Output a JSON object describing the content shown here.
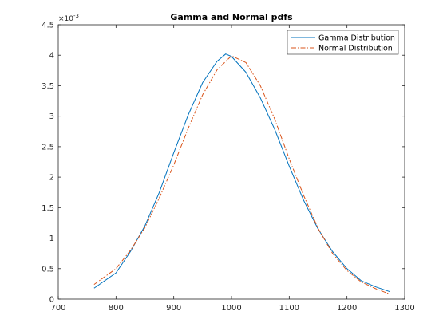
{
  "chart_data": {
    "type": "line",
    "title": "Gamma and Normal pdfs",
    "xlabel": "",
    "ylabel": "",
    "xlim": [
      700,
      1300
    ],
    "ylim": [
      0,
      4.5
    ],
    "y_exponent_label": "×10",
    "y_exponent_power": "-3",
    "x_ticks": [
      "700",
      "800",
      "900",
      "1000",
      "1100",
      "1200",
      "1300"
    ],
    "y_ticks": [
      "0",
      "0.5",
      "1",
      "1.5",
      "2",
      "2.5",
      "3",
      "3.5",
      "4",
      "4.5"
    ],
    "legend_position": "top-right",
    "grid": false,
    "series": [
      {
        "name": "Gamma Distribution",
        "color": "#0072BD",
        "style": "solid",
        "x": [
          762,
          800,
          825,
          850,
          875,
          900,
          925,
          950,
          975,
          990,
          1000,
          1025,
          1050,
          1075,
          1100,
          1125,
          1150,
          1175,
          1200,
          1225,
          1250,
          1275
        ],
        "y": [
          0.18,
          0.43,
          0.78,
          1.2,
          1.75,
          2.4,
          3.02,
          3.55,
          3.9,
          4.02,
          3.98,
          3.72,
          3.3,
          2.78,
          2.18,
          1.62,
          1.15,
          0.78,
          0.5,
          0.3,
          0.2,
          0.12
        ]
      },
      {
        "name": "Normal Distribution",
        "color": "#D95319",
        "style": "dash-dot",
        "x": [
          762,
          800,
          825,
          850,
          875,
          900,
          925,
          950,
          975,
          1000,
          1025,
          1050,
          1075,
          1100,
          1125,
          1150,
          1175,
          1200,
          1225,
          1250,
          1275
        ],
        "y": [
          0.24,
          0.5,
          0.8,
          1.17,
          1.66,
          2.2,
          2.8,
          3.35,
          3.76,
          3.99,
          3.88,
          3.5,
          2.95,
          2.3,
          1.7,
          1.16,
          0.75,
          0.47,
          0.28,
          0.17,
          0.08
        ]
      }
    ]
  }
}
